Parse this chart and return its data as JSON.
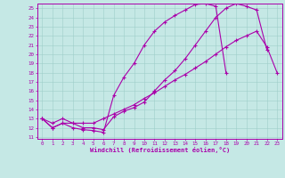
{
  "xlabel": "Windchill (Refroidissement éolien,°C)",
  "bg_color": "#c5e8e5",
  "line_color": "#aa00aa",
  "grid_color": "#9ececa",
  "xlim_min": -0.5,
  "xlim_max": 23.5,
  "ylim_min": 10.8,
  "ylim_max": 25.5,
  "xticks": [
    0,
    1,
    2,
    3,
    4,
    5,
    6,
    7,
    8,
    9,
    10,
    11,
    12,
    13,
    14,
    15,
    16,
    17,
    18,
    19,
    20,
    21,
    22,
    23
  ],
  "yticks": [
    11,
    12,
    13,
    14,
    15,
    16,
    17,
    18,
    19,
    20,
    21,
    22,
    23,
    24,
    25
  ],
  "line1_x": [
    0,
    1,
    2,
    3,
    4,
    5,
    6,
    7,
    8,
    9,
    10,
    11,
    12,
    13,
    14,
    15,
    16,
    17,
    18
  ],
  "line1_y": [
    13,
    12,
    12.5,
    12,
    11.8,
    11.7,
    11.5,
    15.5,
    17.5,
    19,
    21,
    22.5,
    23.5,
    24.2,
    24.8,
    25.4,
    25.5,
    25.2,
    18.0
  ],
  "line2_x": [
    0,
    1,
    2,
    3,
    4,
    5,
    6,
    7,
    8,
    9,
    10,
    11,
    12,
    13,
    14,
    15,
    16,
    17,
    18,
    19,
    20,
    21,
    22
  ],
  "line2_y": [
    13,
    12,
    12.5,
    12.5,
    12,
    12,
    11.8,
    13.2,
    13.8,
    14.2,
    14.8,
    16.0,
    17.2,
    18.2,
    19.5,
    21.0,
    22.5,
    24.0,
    25.0,
    25.5,
    25.2,
    24.8,
    20.5
  ],
  "line3_x": [
    0,
    1,
    2,
    3,
    4,
    5,
    6,
    7,
    8,
    9,
    10,
    11,
    12,
    13,
    14,
    15,
    16,
    17,
    18,
    19,
    20,
    21,
    22,
    23
  ],
  "line3_y": [
    13,
    12.5,
    13.0,
    12.5,
    12.5,
    12.5,
    13.0,
    13.5,
    14.0,
    14.5,
    15.2,
    15.8,
    16.5,
    17.2,
    17.8,
    18.5,
    19.2,
    20.0,
    20.8,
    21.5,
    22.0,
    22.5,
    20.8,
    18.0
  ],
  "figwidth": 3.2,
  "figheight": 2.0,
  "dpi": 100
}
